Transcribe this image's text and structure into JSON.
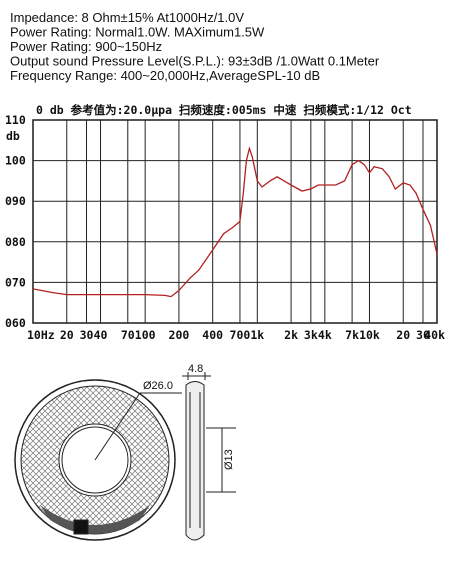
{
  "specs": [
    "Impedance: 8 Ohm±15%  At1000Hz/1.0V",
    "Power Rating: Normal1.0W. MAXimum1.5W",
    "Power Rating: 900~150Hz",
    "Output sound Pressure Level(S.P.L.): 93±3dB /1.0Watt 0.1Meter",
    "Frequency Range: 400~20,000Hz,AverageSPL-10 dB"
  ],
  "chart_data": {
    "type": "line",
    "subtitle": "0 db 参考值为:20.0μpa  扫频速度:005ms  中速   扫频模式:1/12  Oct",
    "y_label": "db",
    "xscale": "log",
    "grid": true,
    "x": [
      10,
      15,
      20,
      30,
      50,
      100,
      150,
      170,
      200,
      250,
      300,
      400,
      500,
      600,
      700,
      750,
      800,
      850,
      900,
      1000,
      1100,
      1300,
      1500,
      2000,
      2500,
      3000,
      3500,
      4000,
      5000,
      6000,
      7000,
      8000,
      9000,
      10000,
      11000,
      13000,
      15000,
      17000,
      20000,
      23000,
      26000,
      30000,
      35000,
      40000
    ],
    "series": [
      {
        "name": "SPL",
        "color": "#b32020",
        "values": [
          68.4,
          67.5,
          67,
          67,
          67,
          67,
          66.8,
          66.5,
          68,
          71,
          73,
          78,
          82,
          83.5,
          85,
          92,
          100,
          103,
          101,
          95,
          93.5,
          95,
          96,
          94,
          92.5,
          93,
          94,
          94,
          94,
          95,
          99,
          100,
          99,
          97,
          98.5,
          98,
          96,
          93,
          94.5,
          94,
          92,
          88,
          84,
          77
        ]
      }
    ],
    "xlim": [
      10,
      40000
    ],
    "ylim": [
      60,
      110
    ],
    "xticks": [
      {
        "value": 10,
        "label": "10Hz"
      },
      20,
      30,
      40,
      70,
      100,
      200,
      400,
      700,
      {
        "value": 1000,
        "label": "1k"
      },
      {
        "value": 2000,
        "label": "2k"
      },
      {
        "value": 3000,
        "label": "3k"
      },
      {
        "value": 4000,
        "label": "4k"
      },
      {
        "value": 7000,
        "label": "7k"
      },
      {
        "value": 10000,
        "label": "10k"
      },
      {
        "value": 20000,
        "label": "20"
      },
      {
        "value": 30000,
        "label": "30"
      },
      {
        "value": 40000,
        "label": "40k"
      }
    ],
    "yticks": [
      110,
      100,
      {
        "value": 90,
        "label": "090"
      },
      {
        "value": 80,
        "label": "080"
      },
      {
        "value": 70,
        "label": "070"
      },
      {
        "value": 60,
        "label": "060"
      }
    ]
  },
  "drawing": {
    "outer_diameter": "Ø26.0",
    "depth": "4.8",
    "inner_diameter": "Ø13"
  }
}
